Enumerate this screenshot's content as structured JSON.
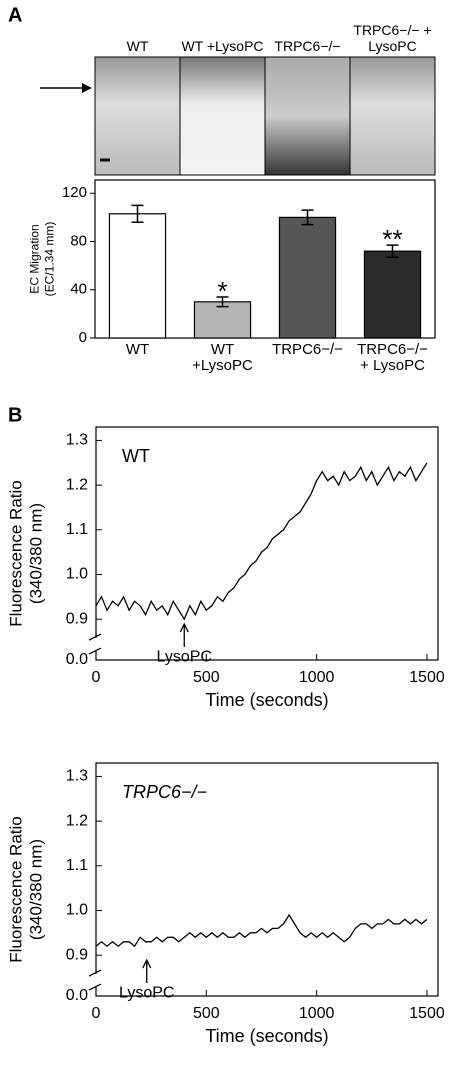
{
  "figure": {
    "panel_labels": [
      "A",
      "B"
    ],
    "image_labels": [
      "WT",
      "WT +LysoPC",
      "TRPC6−/−",
      "TRPC6−/− + LysoPC"
    ]
  },
  "chart_data": [
    {
      "type": "bar",
      "ylabel": [
        "EC Migration",
        "(EC/1.34 mm)"
      ],
      "categories": [
        "WT",
        "WT +LysoPC",
        "TRPC6−/−",
        "TRPC6−/− + LysoPC"
      ],
      "values": [
        103,
        30,
        100,
        72
      ],
      "errors": [
        7,
        4,
        6,
        5
      ],
      "colors": [
        "#ffffff",
        "#b5b5b5",
        "#555555",
        "#2b2b2b"
      ],
      "annotations": [
        {
          "text": "*",
          "category": "WT +LysoPC"
        },
        {
          "text": "**",
          "category": "TRPC6−/− + LysoPC"
        }
      ],
      "ylim": [
        0,
        131
      ],
      "yticks": [
        0,
        40,
        80,
        120
      ]
    },
    {
      "type": "line",
      "xlabel": "Time (seconds)",
      "ylabel": [
        "Fluorescence Ratio",
        "(340/380 nm)"
      ],
      "x": [
        0,
        25,
        50,
        75,
        100,
        125,
        150,
        175,
        200,
        225,
        250,
        275,
        300,
        325,
        350,
        375,
        400,
        425,
        450,
        475,
        500,
        525,
        550,
        575,
        600,
        625,
        650,
        675,
        700,
        725,
        750,
        775,
        800,
        825,
        850,
        875,
        900,
        925,
        950,
        975,
        1000,
        1025,
        1050,
        1075,
        1100,
        1125,
        1150,
        1175,
        1200,
        1225,
        1250,
        1275,
        1300,
        1325,
        1350,
        1375,
        1400,
        1425,
        1450,
        1475,
        1500
      ],
      "series": [
        {
          "name": "WT",
          "color": "#000000",
          "values": [
            0.93,
            0.95,
            0.92,
            0.94,
            0.93,
            0.95,
            0.92,
            0.94,
            0.93,
            0.91,
            0.94,
            0.92,
            0.93,
            0.91,
            0.94,
            0.92,
            0.9,
            0.93,
            0.91,
            0.94,
            0.92,
            0.93,
            0.95,
            0.94,
            0.96,
            0.97,
            0.99,
            1.0,
            1.02,
            1.03,
            1.05,
            1.06,
            1.08,
            1.09,
            1.1,
            1.12,
            1.13,
            1.14,
            1.16,
            1.18,
            1.21,
            1.23,
            1.21,
            1.22,
            1.2,
            1.23,
            1.21,
            1.22,
            1.24,
            1.21,
            1.23,
            1.2,
            1.22,
            1.24,
            1.21,
            1.23,
            1.22,
            1.24,
            1.21,
            1.23,
            1.25
          ]
        }
      ],
      "annotations": [
        {
          "text": "LysoPC",
          "x": 400
        }
      ],
      "xlim": [
        0,
        1550
      ],
      "xticks": [
        0,
        500,
        1000,
        1500
      ],
      "ylim": [
        0,
        1.33
      ],
      "ybreak": [
        0.02,
        0.86
      ],
      "yticks": [
        {
          "value": 0,
          "label": "0.0"
        },
        0.9,
        {
          "value": 1,
          "label": "1.0"
        },
        1.1,
        1.2,
        1.3
      ]
    },
    {
      "type": "line",
      "xlabel": "Time (seconds)",
      "ylabel": [
        "Fluorescence Ratio",
        "(340/380 nm)"
      ],
      "x": [
        0,
        25,
        50,
        75,
        100,
        125,
        150,
        175,
        200,
        225,
        250,
        275,
        300,
        325,
        350,
        375,
        400,
        425,
        450,
        475,
        500,
        525,
        550,
        575,
        600,
        625,
        650,
        675,
        700,
        725,
        750,
        775,
        800,
        825,
        850,
        875,
        900,
        925,
        950,
        975,
        1000,
        1025,
        1050,
        1075,
        1100,
        1125,
        1150,
        1175,
        1200,
        1225,
        1250,
        1275,
        1300,
        1325,
        1350,
        1375,
        1400,
        1425,
        1450,
        1475,
        1500
      ],
      "series": [
        {
          "name": "TRPC6−/−",
          "color": "#000000",
          "values": [
            0.92,
            0.93,
            0.92,
            0.93,
            0.92,
            0.93,
            0.93,
            0.92,
            0.94,
            0.93,
            0.93,
            0.94,
            0.93,
            0.94,
            0.94,
            0.93,
            0.94,
            0.95,
            0.94,
            0.95,
            0.94,
            0.95,
            0.94,
            0.95,
            0.94,
            0.94,
            0.95,
            0.94,
            0.95,
            0.95,
            0.96,
            0.95,
            0.96,
            0.96,
            0.97,
            0.99,
            0.97,
            0.95,
            0.94,
            0.95,
            0.94,
            0.95,
            0.94,
            0.95,
            0.94,
            0.93,
            0.94,
            0.96,
            0.97,
            0.97,
            0.96,
            0.97,
            0.97,
            0.98,
            0.97,
            0.97,
            0.98,
            0.97,
            0.98,
            0.97,
            0.98
          ]
        }
      ],
      "annotations": [
        {
          "text": "LysoPC",
          "x": 230
        }
      ],
      "xlim": [
        0,
        1550
      ],
      "xticks": [
        0,
        500,
        1000,
        1500
      ],
      "ylim": [
        0,
        1.33
      ],
      "ybreak": [
        0.02,
        0.86
      ],
      "yticks": [
        {
          "value": 0,
          "label": "0.0"
        },
        0.9,
        {
          "value": 1,
          "label": "1.0"
        },
        1.1,
        1.2,
        1.3
      ]
    }
  ]
}
